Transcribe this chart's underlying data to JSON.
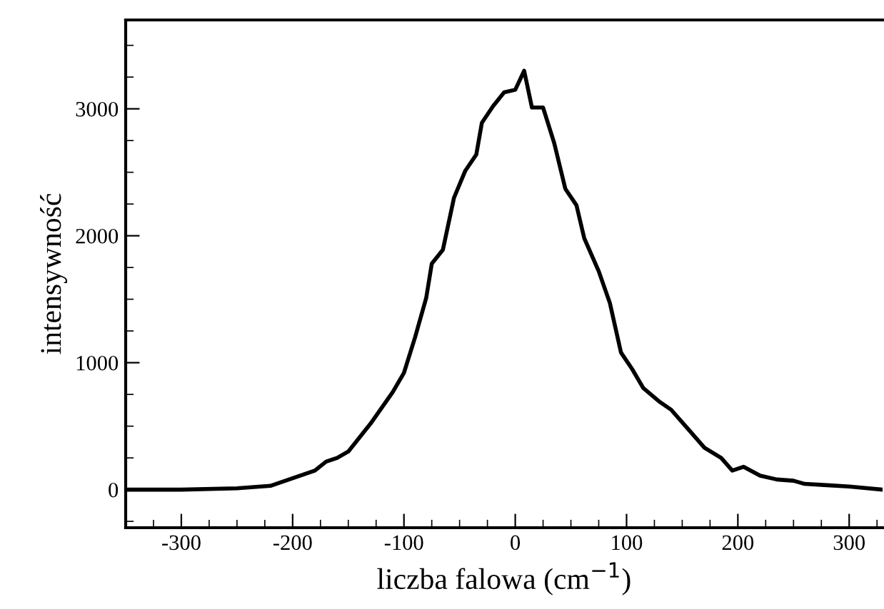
{
  "chart_data": {
    "type": "line",
    "xlabel": "liczba falowa (cm$^{−1}$)",
    "ylabel": "intensywność",
    "x": [
      -350,
      -300,
      -250,
      -220,
      -200,
      -180,
      -170,
      -160,
      -150,
      -130,
      -110,
      -100,
      -90,
      -80,
      -75,
      -65,
      -55,
      -45,
      -35,
      -30,
      -20,
      -10,
      0,
      8,
      15,
      25,
      35,
      45,
      55,
      62,
      75,
      85,
      95,
      105,
      115,
      130,
      140,
      155,
      170,
      185,
      195,
      205,
      220,
      235,
      250,
      260,
      280,
      300,
      330
    ],
    "series": [
      {
        "color": "#000000",
        "values": [
          0,
          0,
          10,
          30,
          90,
          150,
          220,
          250,
          300,
          520,
          770,
          920,
          1200,
          1510,
          1780,
          1890,
          2300,
          2510,
          2640,
          2890,
          3020,
          3130,
          3150,
          3300,
          3010,
          3010,
          2730,
          2370,
          2240,
          1980,
          1720,
          1470,
          1080,
          950,
          800,
          690,
          630,
          480,
          330,
          250,
          150,
          180,
          110,
          80,
          70,
          45,
          35,
          25,
          0
        ]
      }
    ],
    "xlim": [
      -350,
      330
    ],
    "ylim": [
      -300,
      3700
    ],
    "xticks": [
      -300,
      -200,
      -100,
      0,
      100,
      200,
      300
    ],
    "yticks": [
      0,
      1000,
      2000,
      3000
    ],
    "grid": false,
    "legend": false,
    "marker": "none",
    "line_style": "solid"
  }
}
